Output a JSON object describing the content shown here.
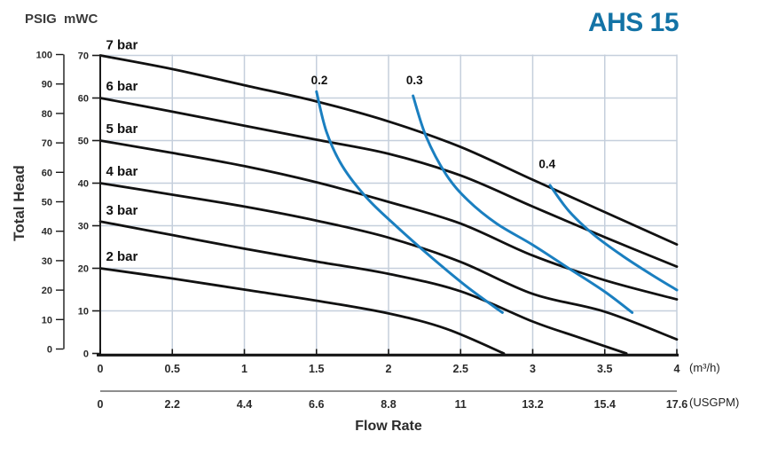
{
  "title": "AHS 15",
  "axes": {
    "y_label": "Total Head",
    "x_label": "Flow Rate"
  },
  "colors": {
    "accent_blue": "#1373a6",
    "curve_black": "#111111",
    "curve_blue": "#1a7fc0",
    "grid": "#c5cfdc",
    "axis": "#1b1b1b"
  },
  "chart_data": {
    "type": "line",
    "title": "AHS 15",
    "xlabel": "Flow Rate",
    "ylabel": "Total Head",
    "grid": true,
    "xlim_m3h": [
      0,
      4
    ],
    "ylim_mwc": [
      0,
      70
    ],
    "ylim_psig": [
      0,
      100
    ],
    "x_axes": [
      {
        "unit": "(m³/h)",
        "ticks": [
          "0",
          "0.5",
          "1",
          "1.5",
          "2",
          "2.5",
          "3",
          "3.5",
          "4"
        ]
      },
      {
        "unit": "(USGPM)",
        "ticks": [
          "0",
          "2.2",
          "4.4",
          "6.6",
          "8.8",
          "11",
          "13.2",
          "15.4",
          "17.6"
        ]
      }
    ],
    "y_axes": [
      {
        "unit": "PSIG",
        "ticks": [
          "0",
          "10",
          "20",
          "30",
          "40",
          "50",
          "60",
          "70",
          "80",
          "90",
          "100"
        ]
      },
      {
        "unit": "mWC",
        "ticks": [
          "0",
          "10",
          "20",
          "30",
          "40",
          "50",
          "60",
          "70"
        ]
      }
    ],
    "series": [
      {
        "name": "7 bar",
        "group": "pressure-curve",
        "color": "#111111",
        "width": 2.8,
        "label_align": "start",
        "label_anchor": [
          0.04,
          71.5
        ],
        "points": [
          [
            0,
            70
          ],
          [
            0.5,
            66.8
          ],
          [
            1,
            63
          ],
          [
            1.5,
            59.2
          ],
          [
            2,
            54.5
          ],
          [
            2.5,
            48.5
          ],
          [
            3,
            40.8
          ],
          [
            3.5,
            33.2
          ],
          [
            4,
            25.6
          ]
        ]
      },
      {
        "name": "6 bar",
        "group": "pressure-curve",
        "color": "#111111",
        "width": 2.8,
        "label_align": "start",
        "label_anchor": [
          0.04,
          61.8
        ],
        "points": [
          [
            0,
            60
          ],
          [
            0.5,
            56.8
          ],
          [
            1,
            53.5
          ],
          [
            1.5,
            50.2
          ],
          [
            2,
            46.9
          ],
          [
            2.5,
            41.8
          ],
          [
            3,
            34.5
          ],
          [
            3.5,
            27.3
          ],
          [
            4,
            20.4
          ]
        ]
      },
      {
        "name": "5 bar",
        "group": "pressure-curve",
        "color": "#111111",
        "width": 2.8,
        "label_align": "start",
        "label_anchor": [
          0.04,
          51.8
        ],
        "points": [
          [
            0,
            50
          ],
          [
            0.5,
            47.1
          ],
          [
            1,
            44
          ],
          [
            1.5,
            40.2
          ],
          [
            2,
            35.6
          ],
          [
            2.5,
            30.5
          ],
          [
            3,
            23
          ],
          [
            3.5,
            17.2
          ],
          [
            4,
            12.7
          ]
        ]
      },
      {
        "name": "4 bar",
        "group": "pressure-curve",
        "color": "#111111",
        "width": 2.8,
        "label_align": "start",
        "label_anchor": [
          0.04,
          41.8
        ],
        "points": [
          [
            0,
            40
          ],
          [
            0.5,
            37.3
          ],
          [
            1,
            34.5
          ],
          [
            1.5,
            31.2
          ],
          [
            2,
            27.2
          ],
          [
            2.5,
            21.5
          ],
          [
            3,
            14
          ],
          [
            3.5,
            9.8
          ],
          [
            4,
            3.3
          ]
        ]
      },
      {
        "name": "3 bar",
        "group": "pressure-curve",
        "color": "#111111",
        "width": 2.8,
        "label_align": "start",
        "label_anchor": [
          0.04,
          32.6
        ],
        "points": [
          [
            0,
            31
          ],
          [
            0.5,
            27.8
          ],
          [
            1,
            24.6
          ],
          [
            1.5,
            21.6
          ],
          [
            2,
            18.7
          ],
          [
            2.5,
            14.6
          ],
          [
            3,
            7.5
          ],
          [
            3.3,
            4
          ],
          [
            3.65,
            0
          ]
        ]
      },
      {
        "name": "2 bar",
        "group": "pressure-curve",
        "color": "#111111",
        "width": 2.8,
        "label_align": "start",
        "label_anchor": [
          0.04,
          21.8
        ],
        "points": [
          [
            0,
            20
          ],
          [
            0.5,
            17.6
          ],
          [
            1,
            15
          ],
          [
            1.5,
            12.4
          ],
          [
            2,
            9.4
          ],
          [
            2.4,
            5.8
          ],
          [
            2.8,
            0
          ]
        ]
      },
      {
        "name": "0.2",
        "group": "blue-curve",
        "color": "#1a7fc0",
        "width": 3,
        "label_align": "middle",
        "label_anchor": [
          1.52,
          63.2
        ],
        "points": [
          [
            1.5,
            61.5
          ],
          [
            1.57,
            52
          ],
          [
            1.68,
            44
          ],
          [
            1.85,
            36.5
          ],
          [
            2.05,
            30
          ],
          [
            2.3,
            22.5
          ],
          [
            2.55,
            15.5
          ],
          [
            2.79,
            9.6
          ]
        ]
      },
      {
        "name": "0.3",
        "group": "blue-curve",
        "color": "#1a7fc0",
        "width": 3,
        "label_align": "middle",
        "label_anchor": [
          2.18,
          63.2
        ],
        "points": [
          [
            2.17,
            60.5
          ],
          [
            2.26,
            51
          ],
          [
            2.4,
            42
          ],
          [
            2.55,
            36
          ],
          [
            2.75,
            30.5
          ],
          [
            3.0,
            25.5
          ],
          [
            3.25,
            20
          ],
          [
            3.5,
            14.5
          ],
          [
            3.69,
            9.6
          ]
        ]
      },
      {
        "name": "0.4",
        "group": "blue-curve",
        "color": "#1a7fc0",
        "width": 3,
        "label_align": "middle",
        "label_anchor": [
          3.1,
          43.5
        ],
        "points": [
          [
            3.12,
            39.5
          ],
          [
            3.25,
            33.5
          ],
          [
            3.42,
            28
          ],
          [
            3.62,
            23
          ],
          [
            3.82,
            18.6
          ],
          [
            4,
            14.9
          ]
        ]
      }
    ]
  }
}
